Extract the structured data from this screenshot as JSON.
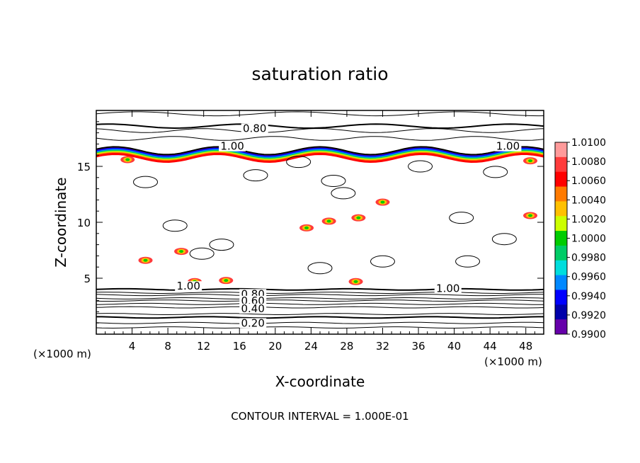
{
  "chart_data": {
    "type": "contour",
    "title": "saturation ratio",
    "xlabel": "X-coordinate",
    "ylabel": "Z-coordinate",
    "x_unit_left": "(×1000 m)",
    "x_unit_right": "(×1000 m)",
    "xlim": [
      0,
      50
    ],
    "ylim": [
      0,
      20
    ],
    "xticks": [
      4,
      8,
      12,
      16,
      20,
      24,
      28,
      32,
      36,
      40,
      44,
      48
    ],
    "yticks": [
      5,
      10,
      15
    ],
    "footer": "CONTOUR INTERVAL = 1.000E-01",
    "colorbar": {
      "labels": [
        "1.0100",
        "1.0080",
        "1.0060",
        "1.0040",
        "1.0020",
        "1.0000",
        "0.9980",
        "0.9960",
        "0.9940",
        "0.9920",
        "0.9900"
      ],
      "colors": [
        "#ff9a9a",
        "#ff3b3b",
        "#ff0000",
        "#ff7a00",
        "#ffc000",
        "#ccff00",
        "#00cc00",
        "#00cc66",
        "#00dddd",
        "#0088ff",
        "#0000ff",
        "#0000aa",
        "#6600aa"
      ]
    },
    "contour_labels": [
      {
        "text": "0.80",
        "x": 17.7,
        "z": 18.2
      },
      {
        "text": "1.00",
        "x": 15.2,
        "z": 16.6
      },
      {
        "text": "1.00",
        "x": 46.0,
        "z": 16.6
      },
      {
        "text": "1.00",
        "x": 10.3,
        "z": 4.1
      },
      {
        "text": "1.00",
        "x": 39.3,
        "z": 3.9
      },
      {
        "text": "0.80",
        "x": 17.5,
        "z": 3.4
      },
      {
        "text": "0.60",
        "x": 17.5,
        "z": 2.8
      },
      {
        "text": "0.40",
        "x": 17.5,
        "z": 2.1
      },
      {
        "text": "0.20",
        "x": 17.5,
        "z": 0.8
      }
    ],
    "upper_lines_z": [
      19.7,
      18.6,
      18.2,
      17.5
    ],
    "lower_lines_z": [
      4.0,
      3.7,
      3.5,
      3.2,
      3.0,
      2.7,
      2.4,
      1.8,
      1.5,
      1.0,
      0.6
    ],
    "saturated_boundary_z": 16.3,
    "supersaturated_spots": [
      {
        "x": 5.5,
        "z": 6.6
      },
      {
        "x": 9.5,
        "z": 7.4
      },
      {
        "x": 23.5,
        "z": 9.5
      },
      {
        "x": 26,
        "z": 10.1
      },
      {
        "x": 29.3,
        "z": 10.4
      },
      {
        "x": 32,
        "z": 11.8
      },
      {
        "x": 48.5,
        "z": 10.6
      },
      {
        "x": 48.5,
        "z": 15.5
      },
      {
        "x": 3.5,
        "z": 15.6
      },
      {
        "x": 14.5,
        "z": 4.8
      },
      {
        "x": 29,
        "z": 4.7
      },
      {
        "x": 11,
        "z": 4.7
      }
    ],
    "closed_contours": [
      {
        "x": 22.6,
        "z": 15.4
      },
      {
        "x": 26.5,
        "z": 13.7
      },
      {
        "x": 27.6,
        "z": 12.6
      },
      {
        "x": 17.8,
        "z": 14.2
      },
      {
        "x": 5.5,
        "z": 13.6
      },
      {
        "x": 36.2,
        "z": 15.0
      },
      {
        "x": 44.6,
        "z": 14.5
      },
      {
        "x": 40.8,
        "z": 10.4
      },
      {
        "x": 8.8,
        "z": 9.7
      },
      {
        "x": 11.8,
        "z": 7.2
      },
      {
        "x": 25,
        "z": 5.9
      },
      {
        "x": 32,
        "z": 6.5
      },
      {
        "x": 41.5,
        "z": 6.5
      },
      {
        "x": 45.6,
        "z": 8.5
      },
      {
        "x": 14,
        "z": 8.0
      }
    ]
  }
}
